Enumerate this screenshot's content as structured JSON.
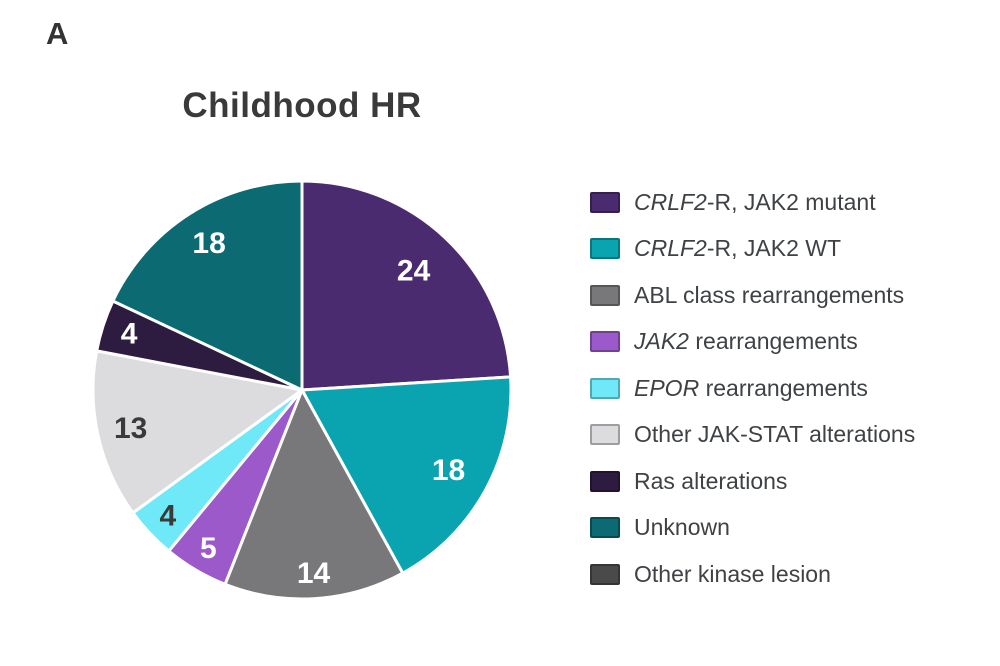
{
  "panel_label": "A",
  "title": "Childhood HR",
  "chart_data": {
    "type": "pie",
    "title": "Childhood HR",
    "start_angle": "12-oclock",
    "direction": "clockwise",
    "total": 100,
    "values_are": "percent",
    "grid": false,
    "legend_position": "right",
    "slice_separator_color": "#ffffff",
    "slices": [
      {
        "name": "CRLF2-R, JAK2 mutant",
        "label_parts": [
          {
            "text": "CRLF2",
            "italic": true
          },
          {
            "text": "-R, JAK2 mutant",
            "italic": false
          }
        ],
        "value": 24,
        "color": "#4a2b6f",
        "value_label": "24",
        "value_label_color": "#ffffff",
        "label_r": 0.78
      },
      {
        "name": "CRLF2-R, JAK2 WT",
        "label_parts": [
          {
            "text": "CRLF2",
            "italic": true
          },
          {
            "text": "-R, JAK2 WT",
            "italic": false
          }
        ],
        "value": 18,
        "color": "#0aa4b0",
        "value_label": "18",
        "value_label_color": "#ffffff",
        "label_r": 0.8
      },
      {
        "name": "ABL class rearrangements",
        "label_parts": [
          {
            "text": "ABL class rearrangements",
            "italic": false
          }
        ],
        "value": 14,
        "color": "#78787a",
        "value_label": "14",
        "value_label_color": "#ffffff",
        "label_r": 0.88
      },
      {
        "name": "JAK2 rearrangements",
        "label_parts": [
          {
            "text": "JAK2",
            "italic": true
          },
          {
            "text": " rearrangements",
            "italic": false
          }
        ],
        "value": 5,
        "color": "#9b59c9",
        "value_label": "5",
        "value_label_color": "#ffffff",
        "label_r": 0.88
      },
      {
        "name": "EPOR rearrangements",
        "label_parts": [
          {
            "text": "EPOR",
            "italic": true
          },
          {
            "text": " rearrangements",
            "italic": false
          }
        ],
        "value": 4,
        "color": "#6fe9f8",
        "value_label": "4",
        "value_label_color": "#3a3a3a",
        "label_r": 0.88
      },
      {
        "name": "Other JAK-STAT alterations",
        "label_parts": [
          {
            "text": "Other JAK-STAT alterations",
            "italic": false
          }
        ],
        "value": 13,
        "color": "#dcdcde",
        "value_label": "13",
        "value_label_color": "#3a3a3a",
        "label_r": 0.84
      },
      {
        "name": "Ras alterations",
        "label_parts": [
          {
            "text": "Ras alterations",
            "italic": false
          }
        ],
        "value": 4,
        "color": "#2e1b40",
        "value_label": "4",
        "value_label_color": "#ffffff",
        "label_r": 0.87
      },
      {
        "name": "Unknown",
        "label_parts": [
          {
            "text": "Unknown",
            "italic": false
          }
        ],
        "value": 18,
        "color": "#0c6a73",
        "value_label": "18",
        "value_label_color": "#ffffff",
        "label_r": 0.83
      },
      {
        "name": "Other kinase lesion",
        "label_parts": [
          {
            "text": "Other kinase lesion",
            "italic": false
          }
        ],
        "value": 0,
        "color": "#4a4a4a",
        "value_label": "",
        "value_label_color": "#ffffff",
        "label_r": 0.8
      }
    ]
  }
}
